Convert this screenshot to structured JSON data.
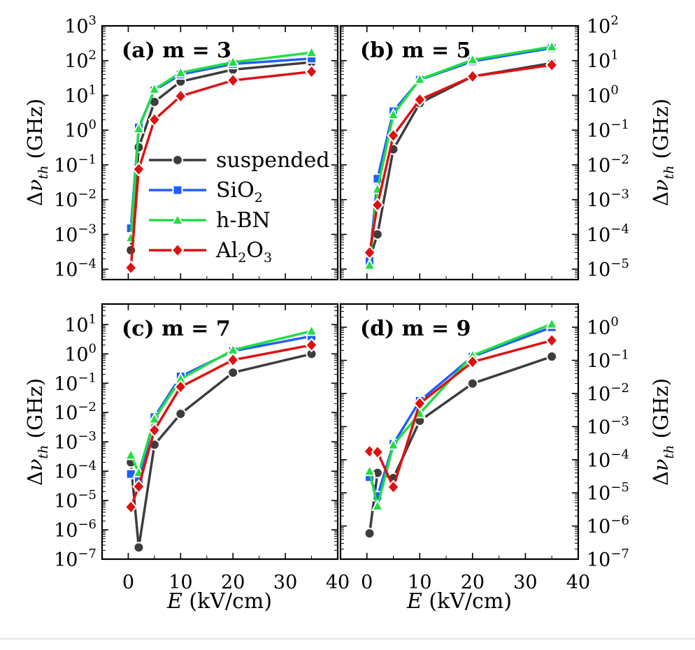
{
  "figure": {
    "xlabel": "E (kV/cm)",
    "ylabel": "Δν_th (GHz)",
    "legend": {
      "placement": "panel-a-center",
      "entries": [
        {
          "label": "suspended",
          "color": "#3d3d3d",
          "marker": "circle"
        },
        {
          "label": "SiO2",
          "color": "#1f5fff",
          "marker": "square"
        },
        {
          "label": "h-BN",
          "color": "#22dd44",
          "marker": "triangle"
        },
        {
          "label": "Al2O3",
          "color": "#dd1111",
          "marker": "diamond"
        }
      ]
    }
  },
  "chart_data": [
    {
      "type": "line",
      "panel": "(a) m = 3",
      "log_y": true,
      "xlim": [
        -5,
        40
      ],
      "ylim_exp": [
        -4.3,
        3
      ],
      "x": [
        0.5,
        2,
        5,
        10,
        20,
        35
      ],
      "series": [
        {
          "name": "suspended",
          "values": [
            0.00035,
            0.32,
            6.5,
            25,
            55,
            90
          ]
        },
        {
          "name": "SiO2",
          "values": [
            0.0015,
            1.2,
            14,
            40,
            80,
            115
          ]
        },
        {
          "name": "h-BN",
          "values": [
            0.0008,
            1.1,
            15,
            45,
            90,
            170
          ]
        },
        {
          "name": "Al2O3",
          "values": [
            0.00011,
            0.075,
            2,
            9.5,
            27,
            48
          ]
        }
      ]
    },
    {
      "type": "line",
      "panel": "(b) m = 5",
      "log_y": true,
      "xlim": [
        -5,
        40
      ],
      "ylim_exp": [
        -5.3,
        2
      ],
      "x": [
        0.5,
        2,
        5,
        10,
        20,
        35
      ],
      "series": [
        {
          "name": "suspended",
          "values": [
            2e-05,
            0.0001,
            0.028,
            0.6,
            3.5,
            8.5
          ]
        },
        {
          "name": "SiO2",
          "values": [
            1.7e-05,
            0.004,
            0.35,
            2.8,
            9.5,
            23
          ]
        },
        {
          "name": "h-BN",
          "values": [
            1.3e-05,
            0.002,
            0.28,
            2.9,
            10.5,
            25
          ]
        },
        {
          "name": "Al2O3",
          "values": [
            3e-05,
            0.0007,
            0.07,
            0.75,
            3.5,
            7.5
          ]
        }
      ]
    },
    {
      "type": "line",
      "panel": "(c) m = 7",
      "log_y": true,
      "xlim": [
        -5,
        40
      ],
      "ylim_exp": [
        -7,
        1.7
      ],
      "x": [
        0.5,
        2,
        5,
        10,
        20,
        35
      ],
      "series": [
        {
          "name": "suspended",
          "values": [
            0.0002,
            2.5e-07,
            0.0008,
            0.009,
            0.23,
            1.0
          ]
        },
        {
          "name": "SiO2",
          "values": [
            8e-05,
            4.5e-05,
            0.007,
            0.17,
            1.25,
            4
          ]
        },
        {
          "name": "h-BN",
          "values": [
            0.00035,
            9e-05,
            0.006,
            0.14,
            1.35,
            6
          ]
        },
        {
          "name": "Al2O3",
          "values": [
            6e-06,
            3e-05,
            0.0025,
            0.075,
            0.62,
            2
          ]
        }
      ]
    },
    {
      "type": "line",
      "panel": "(d) m = 9",
      "log_y": true,
      "xlim": [
        -5,
        40
      ],
      "ylim_exp": [
        -7,
        0.7
      ],
      "x": [
        0.5,
        2,
        5,
        10,
        20,
        35
      ],
      "series": [
        {
          "name": "suspended",
          "values": [
            6e-07,
            4e-05,
            2.8e-05,
            0.0015,
            0.02,
            0.13
          ]
        },
        {
          "name": "SiO2",
          "values": [
            3e-05,
            8e-06,
            0.0003,
            0.006,
            0.13,
            1.0
          ]
        },
        {
          "name": "h-BN",
          "values": [
            4.5e-05,
            4e-06,
            0.00028,
            0.0025,
            0.14,
            1.25
          ]
        },
        {
          "name": "Al2O3",
          "values": [
            0.00018,
            0.00017,
            1.5e-05,
            0.005,
            0.09,
            0.4
          ]
        }
      ]
    }
  ]
}
